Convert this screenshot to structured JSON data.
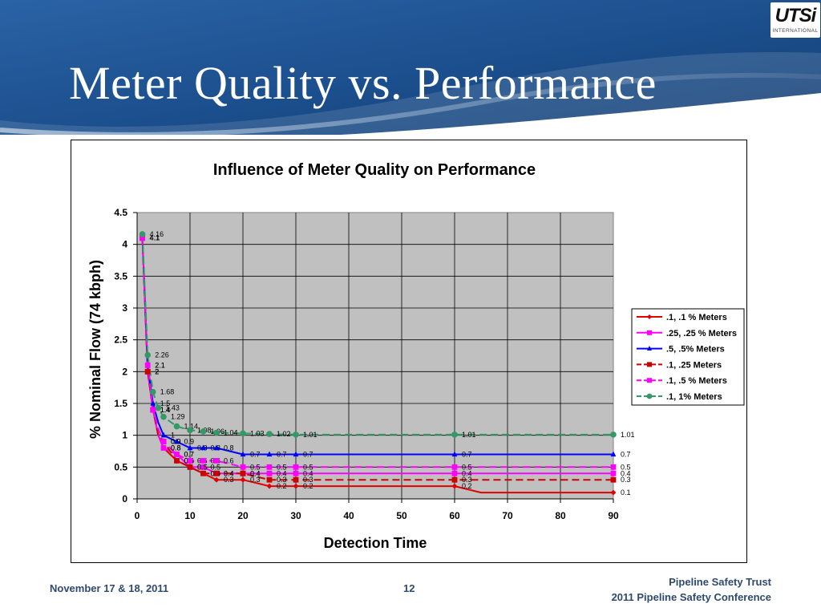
{
  "slide": {
    "title": "Meter Quality vs. Performance",
    "logo_text": "UTSi",
    "logo_subtext": "INTERNATIONAL",
    "footer_left": "November 17 & 18, 2011",
    "footer_page": "12",
    "footer_right_line1": "Pipeline Safety Trust",
    "footer_right_line2": "2011 Pipeline Safety Conference",
    "colors": {
      "header": "#1c4f8f",
      "title_text": "#ffffff",
      "footer_text": "#2e4a6e"
    }
  },
  "chart_data": {
    "type": "line",
    "title": "Influence of Meter Quality on Performance",
    "xlabel": "Detection Time",
    "ylabel": "% Nominal Flow (74 kbph)",
    "xlim": [
      0,
      90
    ],
    "ylim": [
      0,
      4.5
    ],
    "xticks": [
      0,
      10,
      20,
      30,
      40,
      50,
      60,
      70,
      80,
      90
    ],
    "yticks": [
      0,
      0.5,
      1,
      1.5,
      2,
      2.5,
      3,
      3.5,
      4,
      4.5
    ],
    "grid": true,
    "plot_background": "#c0c0c0",
    "legend_position": "right",
    "series": [
      {
        "name": ".1, .1 % Meters",
        "color": "#e00000",
        "marker": "diamond",
        "dash": "solid",
        "x": [
          1,
          2,
          3,
          4,
          5,
          7.5,
          10,
          12.5,
          15,
          20,
          25,
          30,
          35,
          40,
          45,
          50,
          55,
          60,
          65,
          70,
          75,
          80,
          85,
          90
        ],
        "y": [
          4.1,
          2.0,
          1.4,
          1.0,
          0.8,
          0.6,
          0.5,
          0.4,
          0.3,
          0.3,
          0.2,
          0.2,
          0.2,
          0.2,
          0.2,
          0.2,
          0.2,
          0.2,
          0.1,
          0.1,
          0.1,
          0.1,
          0.1,
          0.1
        ],
        "labeled_points": [
          {
            "x": 1,
            "y": 4.1
          },
          {
            "x": 2,
            "y": 2.0
          },
          {
            "x": 3,
            "y": 1.4
          },
          {
            "x": 5,
            "y": 0.8
          },
          {
            "x": 7.5,
            "y": 0.6
          },
          {
            "x": 10,
            "y": 0.5
          },
          {
            "x": 12.5,
            "y": 0.4
          },
          {
            "x": 15,
            "y": 0.3
          },
          {
            "x": 20,
            "y": 0.3
          },
          {
            "x": 25,
            "y": 0.2
          },
          {
            "x": 30,
            "y": 0.2
          },
          {
            "x": 60,
            "y": 0.2
          },
          {
            "x": 90,
            "y": 0.1
          }
        ]
      },
      {
        "name": ".25, .25 % Meters",
        "color": "#ff00ff",
        "marker": "square",
        "dash": "solid",
        "x": [
          1,
          2,
          3,
          4,
          5,
          7.5,
          10,
          12.5,
          15,
          20,
          25,
          30,
          40,
          50,
          60,
          70,
          80,
          90
        ],
        "y": [
          4.1,
          2.0,
          1.4,
          1.0,
          0.8,
          0.7,
          0.5,
          0.5,
          0.4,
          0.4,
          0.4,
          0.4,
          0.4,
          0.4,
          0.4,
          0.4,
          0.4,
          0.4
        ],
        "labeled_points": [
          {
            "x": 1,
            "y": 4.1
          },
          {
            "x": 2,
            "y": 2.0
          },
          {
            "x": 3,
            "y": 1.4
          },
          {
            "x": 5,
            "y": 0.8
          },
          {
            "x": 7.5,
            "y": 0.7
          },
          {
            "x": 10,
            "y": 0.5
          },
          {
            "x": 12.5,
            "y": 0.5
          },
          {
            "x": 15,
            "y": 0.4
          },
          {
            "x": 20,
            "y": 0.4
          },
          {
            "x": 25,
            "y": 0.4
          },
          {
            "x": 30,
            "y": 0.4
          },
          {
            "x": 60,
            "y": 0.4
          },
          {
            "x": 90,
            "y": 0.4
          }
        ]
      },
      {
        "name": ".5, .5% Meters",
        "color": "#0000ff",
        "marker": "triangle",
        "dash": "solid",
        "x": [
          1,
          2,
          3,
          4,
          5,
          7.5,
          10,
          12.5,
          15,
          20,
          25,
          30,
          40,
          45,
          50,
          60,
          70,
          80,
          90
        ],
        "y": [
          4.1,
          2.1,
          1.5,
          1.2,
          1.0,
          0.9,
          0.8,
          0.8,
          0.8,
          0.7,
          0.7,
          0.7,
          0.7,
          0.7,
          0.7,
          0.7,
          0.7,
          0.7,
          0.7
        ],
        "labeled_points": [
          {
            "x": 1,
            "y": 4.1
          },
          {
            "x": 2,
            "y": 2.1
          },
          {
            "x": 3,
            "y": 1.5
          },
          {
            "x": 5,
            "y": 1.0
          },
          {
            "x": 7.5,
            "y": 0.9
          },
          {
            "x": 10,
            "y": 0.8
          },
          {
            "x": 12.5,
            "y": 0.8
          },
          {
            "x": 15,
            "y": 0.8
          },
          {
            "x": 20,
            "y": 0.7
          },
          {
            "x": 25,
            "y": 0.7
          },
          {
            "x": 30,
            "y": 0.7
          },
          {
            "x": 60,
            "y": 0.7
          },
          {
            "x": 90,
            "y": 0.7
          }
        ]
      },
      {
        "name": ".1, .25 Meters",
        "color": "#cc0000",
        "marker": "square",
        "dash": "dashed",
        "x": [
          1,
          2,
          3,
          4,
          5,
          7.5,
          10,
          12.5,
          15,
          20,
          25,
          30,
          40,
          50,
          60,
          70,
          80,
          90
        ],
        "y": [
          4.1,
          2.0,
          1.4,
          1.0,
          0.9,
          0.6,
          0.5,
          0.4,
          0.4,
          0.4,
          0.3,
          0.3,
          0.3,
          0.3,
          0.3,
          0.3,
          0.3,
          0.3
        ],
        "labeled_points": [
          {
            "x": 1,
            "y": 4.1
          },
          {
            "x": 2,
            "y": 2.0
          },
          {
            "x": 3,
            "y": 1.4
          },
          {
            "x": 5,
            "y": 0.9
          },
          {
            "x": 7.5,
            "y": 0.6
          },
          {
            "x": 10,
            "y": 0.5
          },
          {
            "x": 12.5,
            "y": 0.4
          },
          {
            "x": 15,
            "y": 0.4
          },
          {
            "x": 20,
            "y": 0.4
          },
          {
            "x": 25,
            "y": 0.3
          },
          {
            "x": 30,
            "y": 0.3
          },
          {
            "x": 60,
            "y": 0.3
          },
          {
            "x": 90,
            "y": 0.3
          }
        ]
      },
      {
        "name": ".1, .5 % Meters",
        "color": "#ff00ff",
        "marker": "square",
        "dash": "dashed",
        "x": [
          1,
          2,
          3,
          4,
          5,
          7.5,
          10,
          12.5,
          15,
          20,
          25,
          30,
          40,
          50,
          60,
          70,
          80,
          90
        ],
        "y": [
          4.1,
          2.1,
          1.4,
          1.1,
          0.9,
          0.7,
          0.6,
          0.6,
          0.6,
          0.5,
          0.5,
          0.5,
          0.5,
          0.5,
          0.5,
          0.5,
          0.5,
          0.5
        ],
        "labeled_points": [
          {
            "x": 1,
            "y": 4.1
          },
          {
            "x": 2,
            "y": 2.1
          },
          {
            "x": 3,
            "y": 1.4
          },
          {
            "x": 5,
            "y": 0.9
          },
          {
            "x": 7.5,
            "y": 0.7
          },
          {
            "x": 10,
            "y": 0.6
          },
          {
            "x": 12.5,
            "y": 0.6
          },
          {
            "x": 15,
            "y": 0.6
          },
          {
            "x": 20,
            "y": 0.5
          },
          {
            "x": 25,
            "y": 0.5
          },
          {
            "x": 30,
            "y": 0.5
          },
          {
            "x": 60,
            "y": 0.5
          },
          {
            "x": 90,
            "y": 0.5
          }
        ]
      },
      {
        "name": ".1, 1% Meters",
        "color": "#339966",
        "marker": "circle",
        "dash": "dashed",
        "x": [
          1,
          2,
          3,
          4,
          5,
          7.5,
          10,
          12.5,
          15,
          20,
          25,
          30,
          40,
          50,
          60,
          70,
          80,
          90
        ],
        "y": [
          4.16,
          2.26,
          1.68,
          1.43,
          1.29,
          1.14,
          1.08,
          1.06,
          1.04,
          1.03,
          1.02,
          1.01,
          1.01,
          1.01,
          1.01,
          1.01,
          1.01,
          1.01
        ],
        "labeled_points": [
          {
            "x": 1,
            "y": 4.16
          },
          {
            "x": 2,
            "y": 2.26
          },
          {
            "x": 3,
            "y": 1.68
          },
          {
            "x": 4,
            "y": 1.43
          },
          {
            "x": 5,
            "y": 1.29
          },
          {
            "x": 7.5,
            "y": 1.14
          },
          {
            "x": 10,
            "y": 1.08
          },
          {
            "x": 12.5,
            "y": 1.06
          },
          {
            "x": 15,
            "y": 1.04
          },
          {
            "x": 20,
            "y": 1.03
          },
          {
            "x": 25,
            "y": 1.02
          },
          {
            "x": 30,
            "y": 1.01
          },
          {
            "x": 60,
            "y": 1.01
          },
          {
            "x": 90,
            "y": 1.01
          }
        ]
      }
    ]
  }
}
